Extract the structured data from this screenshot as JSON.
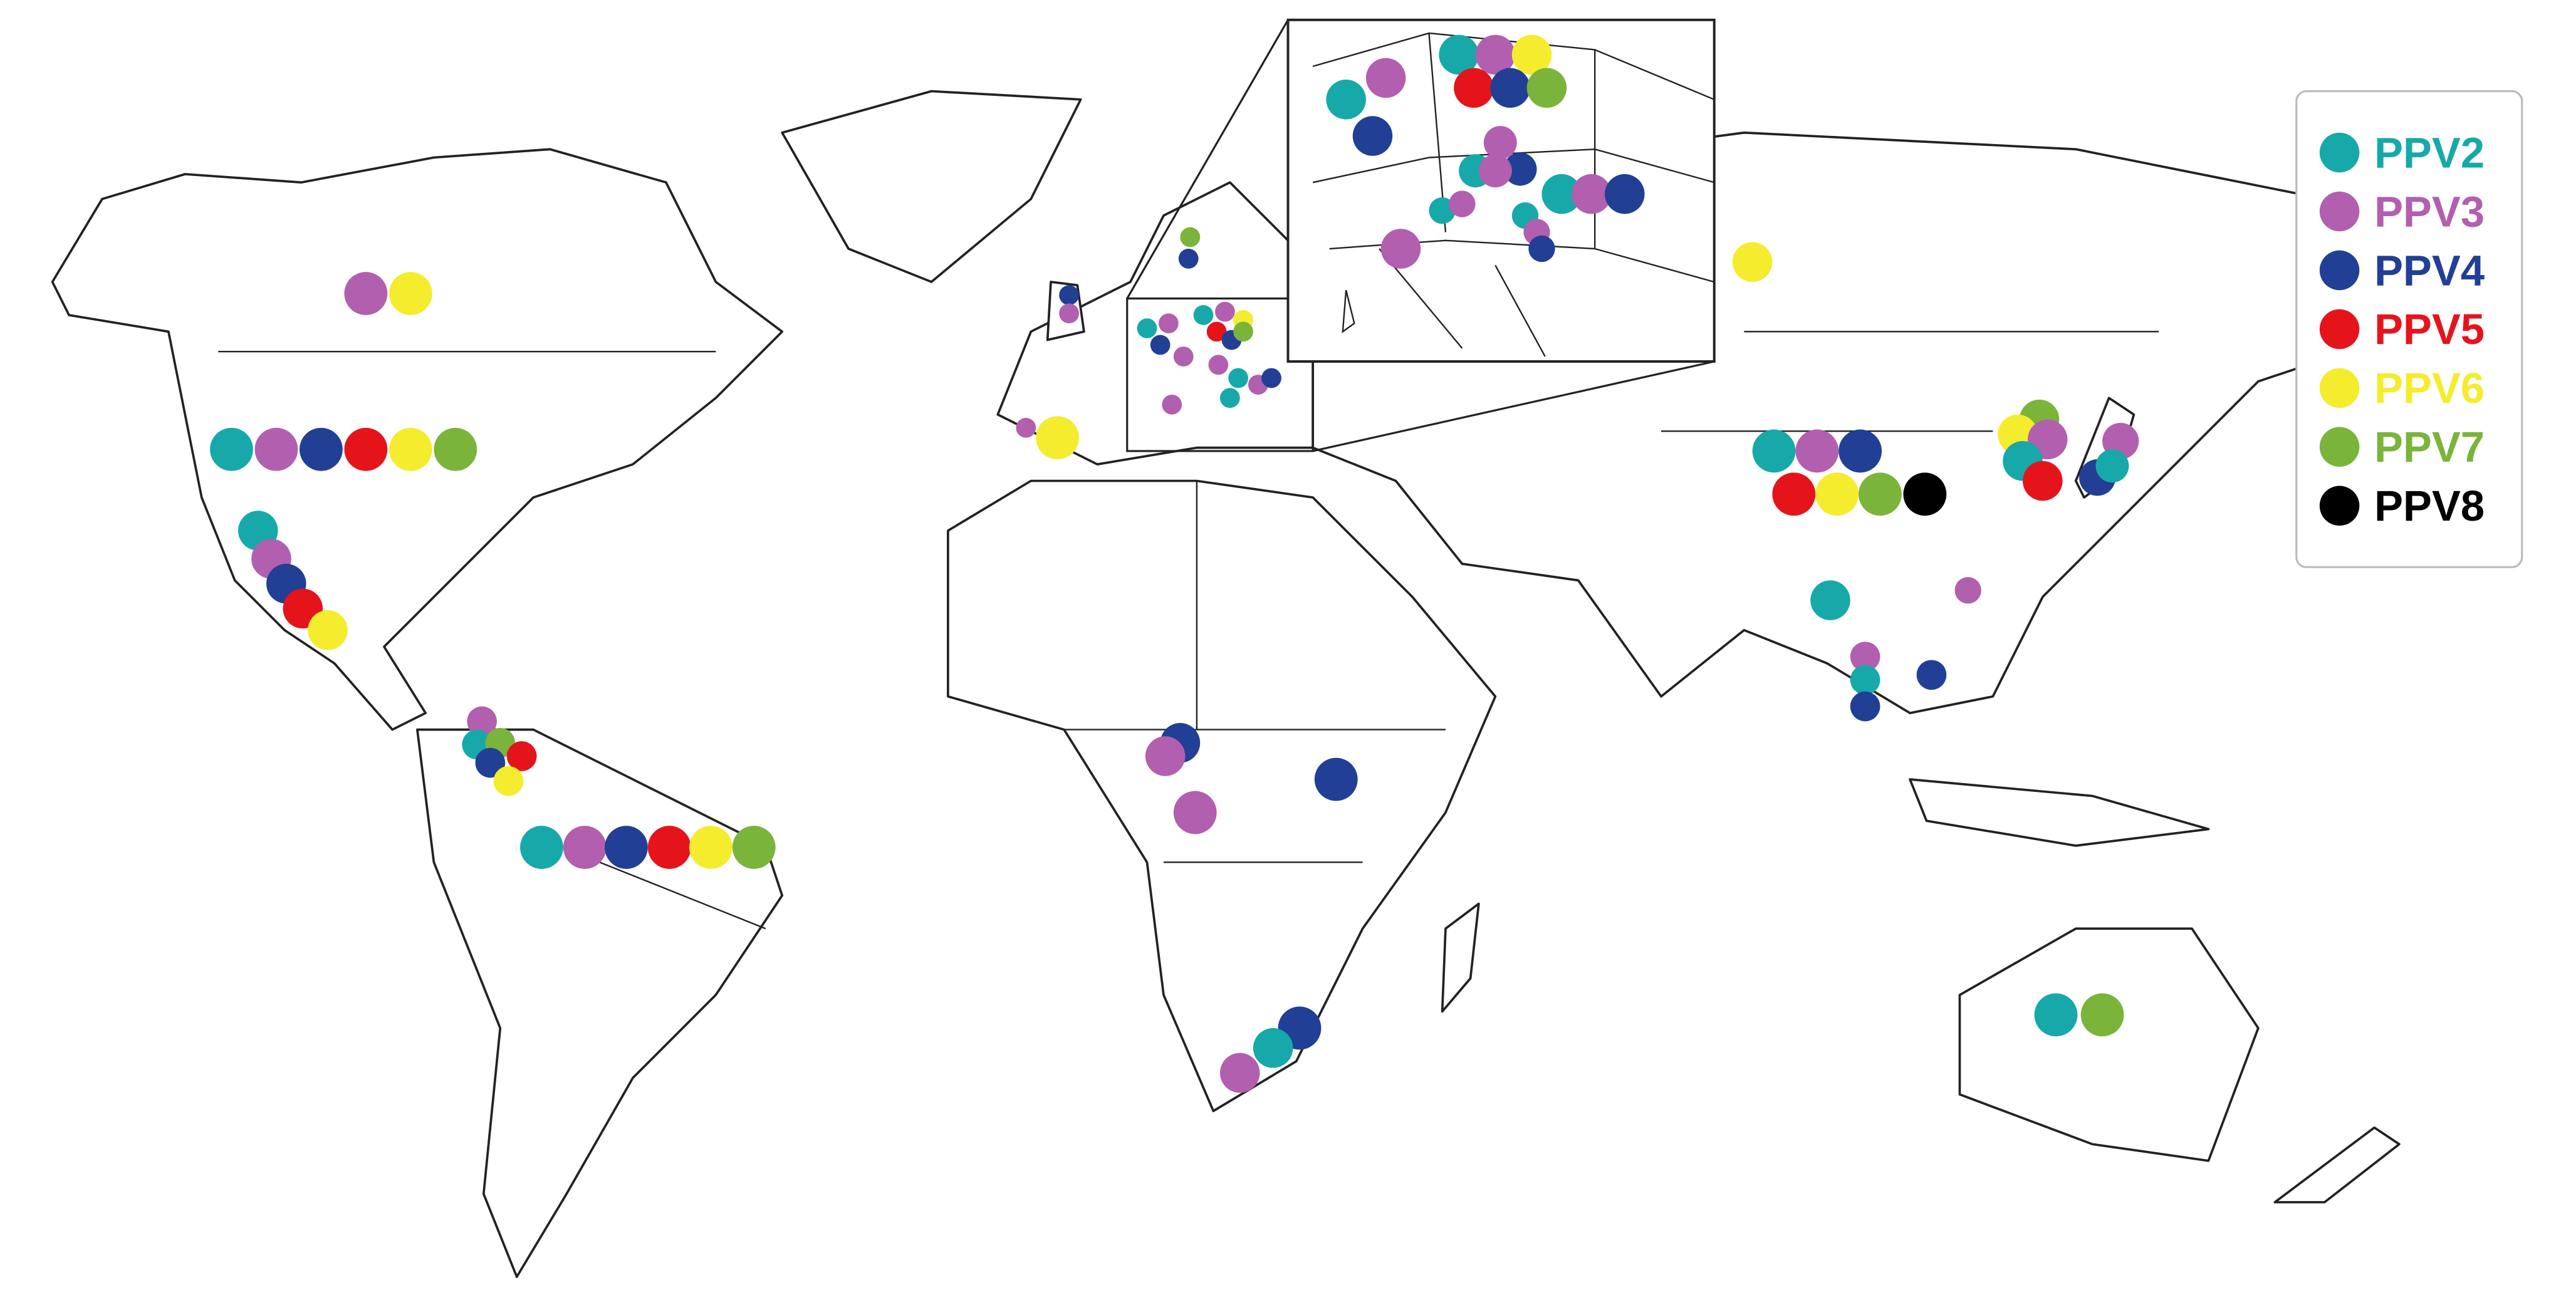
{
  "legend": {
    "items": [
      {
        "label": "PPV2",
        "color": "#17a9a9"
      },
      {
        "label": "PPV3",
        "color": "#b25fb0"
      },
      {
        "label": "PPV4",
        "color": "#213f95"
      },
      {
        "label": "PPV5",
        "color": "#e5141b"
      },
      {
        "label": "PPV6",
        "color": "#f5ec2d"
      },
      {
        "label": "PPV7",
        "color": "#7ab43a"
      },
      {
        "label": "PPV8",
        "color": "#000000"
      }
    ]
  }
}
